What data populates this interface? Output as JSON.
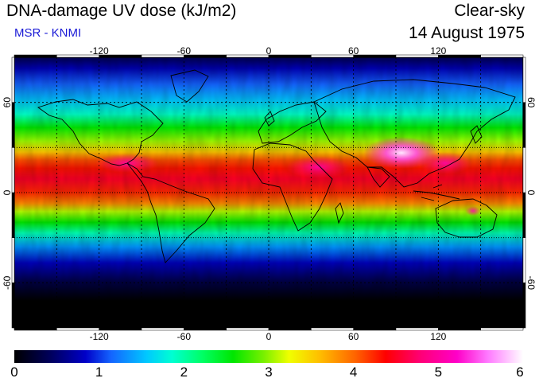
{
  "header": {
    "title": "DNA-damage UV dose (kJ/m2)",
    "subtitle": "MSR - KNMI",
    "condition": "Clear-sky",
    "date": "14 August 1975"
  },
  "map": {
    "projection": "equirectangular",
    "lon_range": [
      -180,
      180
    ],
    "lat_range": [
      -90,
      90
    ],
    "lon_ticks": [
      -120,
      -60,
      0,
      60,
      120
    ],
    "lat_ticks": [
      60,
      0,
      -60
    ],
    "grid_lons": [
      -150,
      -120,
      -90,
      -60,
      -30,
      0,
      30,
      60,
      90,
      120,
      150
    ],
    "grid_lats": [
      60,
      30,
      0,
      -30,
      -60
    ],
    "grid_style": "dotted",
    "solid_lats": [
      30,
      0,
      -30
    ]
  },
  "colorbar": {
    "min": 0,
    "max": 6,
    "labels": [
      "0",
      "1",
      "2",
      "3",
      "4",
      "5",
      "6"
    ]
  },
  "colors": {
    "subtitle": "#1a1ad6",
    "land_outline": "#000000",
    "grid": "#000000"
  }
}
